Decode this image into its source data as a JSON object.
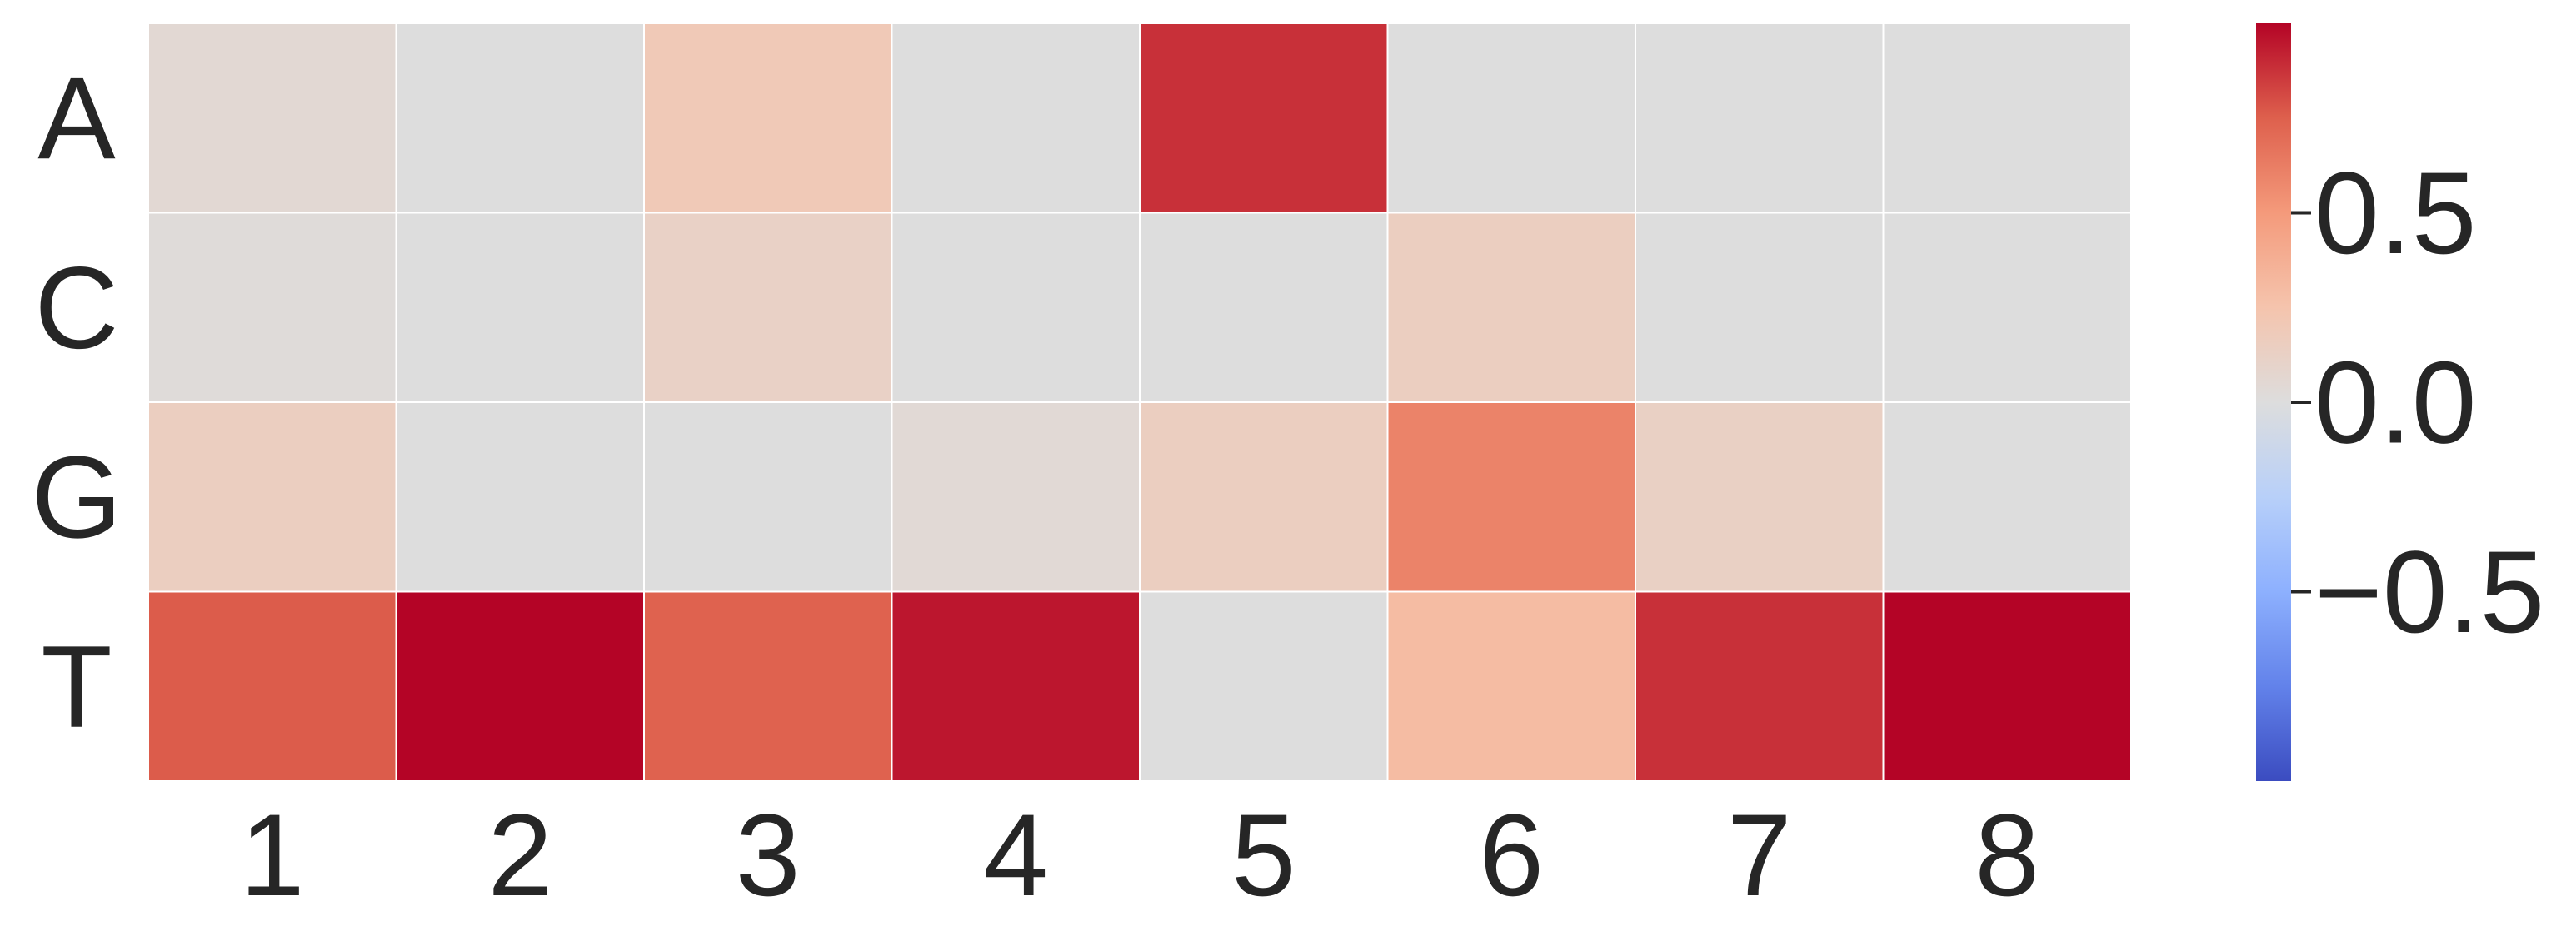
{
  "chart_data": {
    "type": "heatmap",
    "title": "",
    "xlabel": "",
    "ylabel": "",
    "x_categories": [
      "1",
      "2",
      "3",
      "4",
      "5",
      "6",
      "7",
      "8"
    ],
    "y_categories": [
      "A",
      "C",
      "G",
      "T"
    ],
    "values": [
      [
        0.05,
        0.0,
        0.2,
        0.0,
        0.88,
        0.0,
        0.0,
        0.0
      ],
      [
        0.02,
        0.0,
        0.12,
        0.0,
        0.0,
        0.15,
        0.0,
        0.0
      ],
      [
        0.15,
        0.0,
        0.0,
        0.04,
        0.15,
        0.6,
        0.13,
        0.0
      ],
      [
        0.76,
        1.0,
        0.74,
        0.95,
        0.0,
        0.3,
        0.88,
        1.0
      ]
    ],
    "colormap": "coolwarm",
    "vmin": -1.0,
    "vmax": 1.0,
    "colorbar_ticks": [
      0.5,
      0.0,
      -0.5
    ],
    "colorbar_tick_labels": [
      "0.5",
      "0.0",
      "−0.5"
    ],
    "grid": true,
    "cell_border_color": "#ffffff"
  }
}
